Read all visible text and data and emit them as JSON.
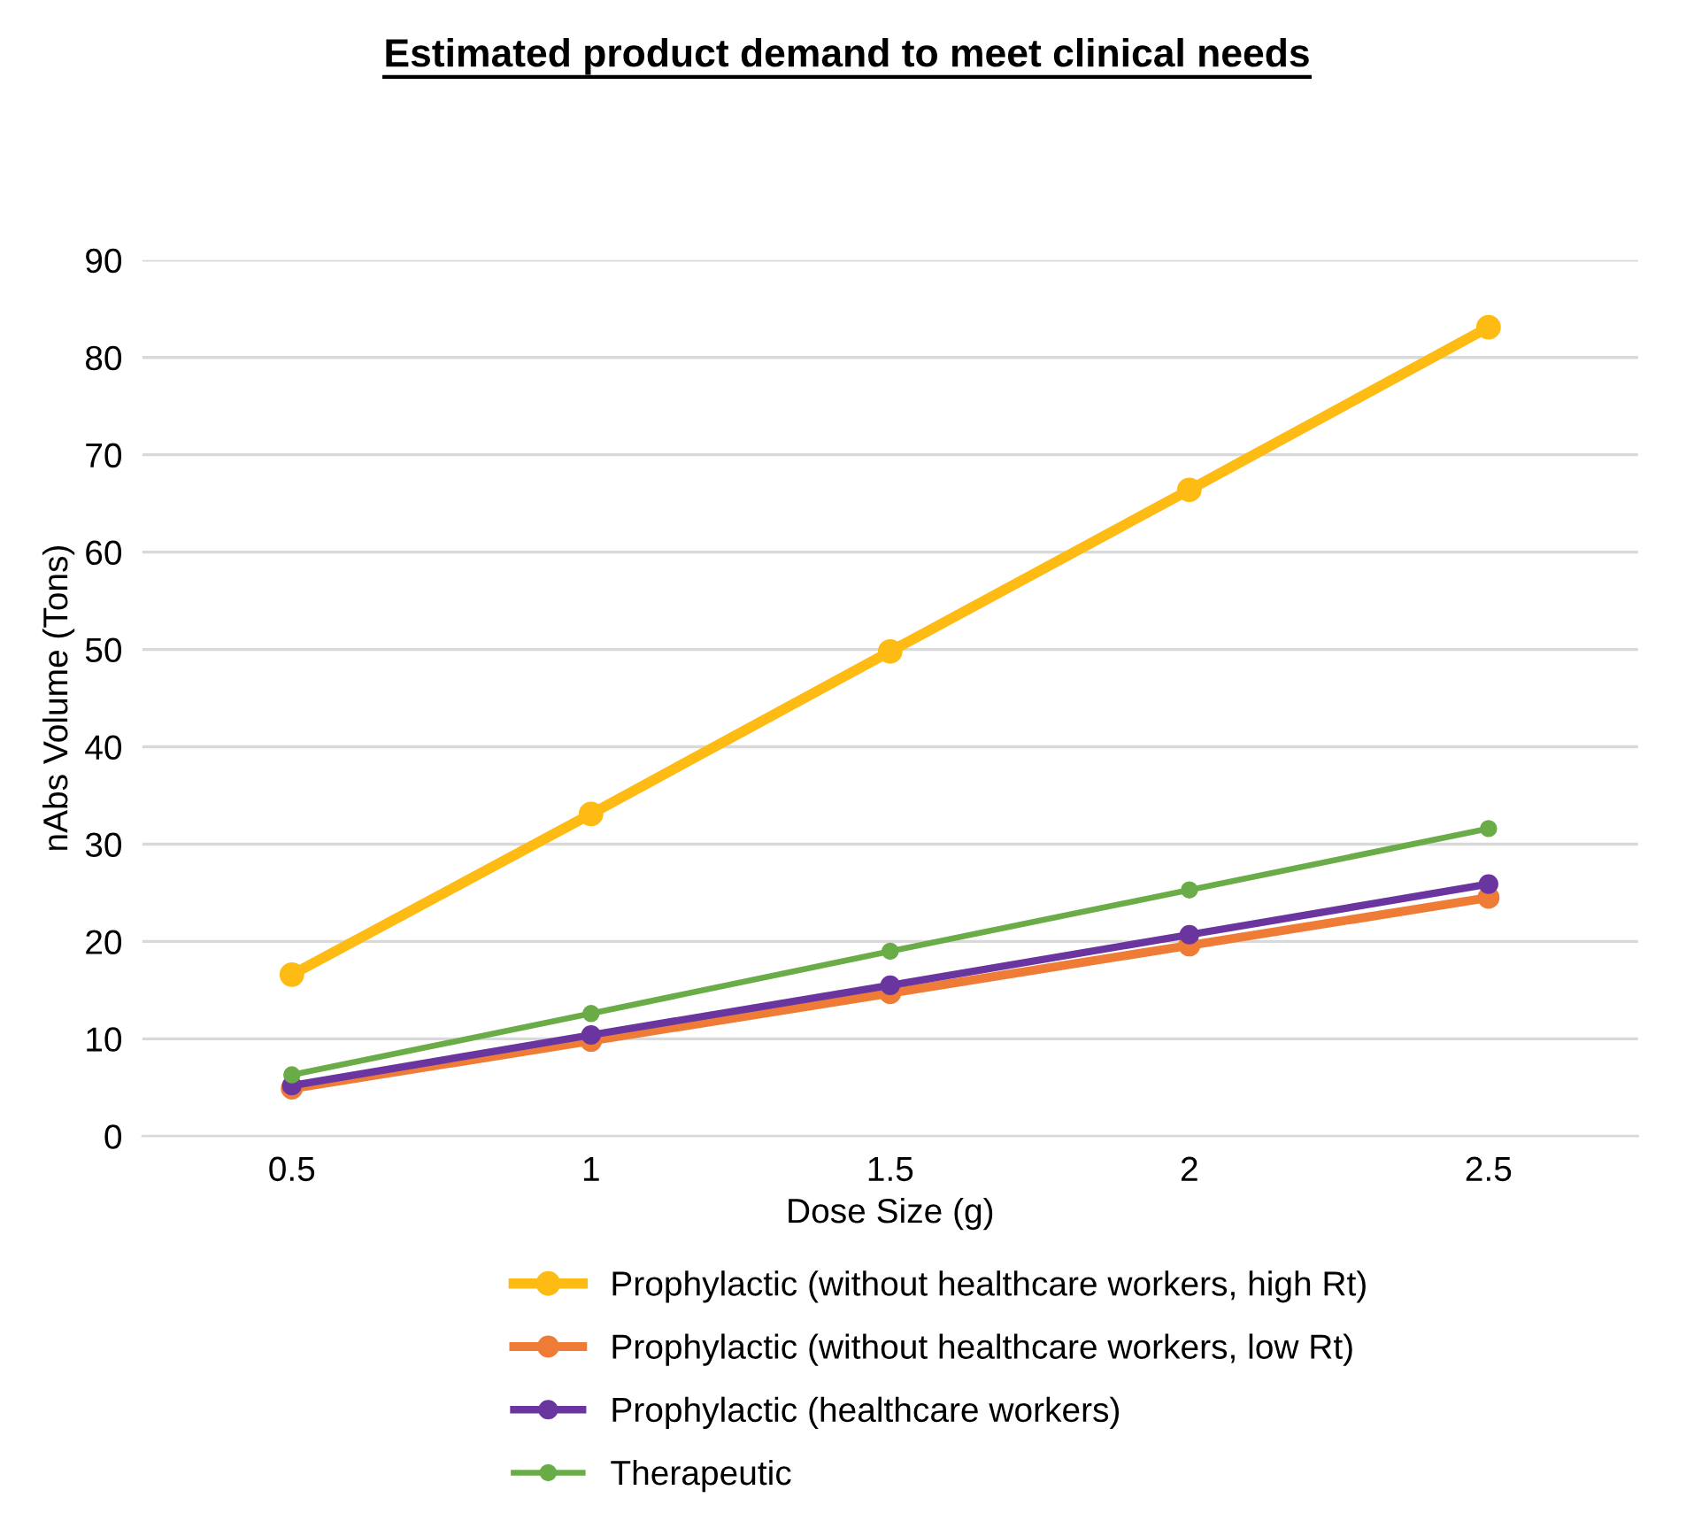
{
  "chart_data": {
    "type": "line",
    "title": "Estimated product demand to meet clinical needs",
    "xlabel": "Dose Size (g)",
    "ylabel": "nAbs Volume (Tons)",
    "categories": [
      "0.5",
      "1",
      "1.5",
      "2",
      "2.5"
    ],
    "series": [
      {
        "name": "Prophylactic (without healthcare workers, high Rt)",
        "color": "#fdbb14",
        "values": [
          16.6,
          33.1,
          49.8,
          66.4,
          83.1
        ]
      },
      {
        "name": "Prophylactic (without healthcare workers, low Rt)",
        "color": "#ef7c36",
        "values": [
          4.9,
          9.8,
          14.7,
          19.6,
          24.5
        ]
      },
      {
        "name": "Prophylactic (healthcare workers)",
        "color": "#6b35a0",
        "values": [
          5.2,
          10.4,
          15.5,
          20.7,
          25.9
        ]
      },
      {
        "name": "Therapeutic",
        "color": "#6aac47",
        "values": [
          6.3,
          12.6,
          19.0,
          25.3,
          31.6
        ]
      }
    ],
    "ylim": [
      0,
      90
    ],
    "yticks": [
      0,
      10,
      20,
      30,
      40,
      50,
      60,
      70,
      80,
      90
    ],
    "grid": "y",
    "legend": "bottom",
    "marker": "circle",
    "line_style": "solid"
  }
}
